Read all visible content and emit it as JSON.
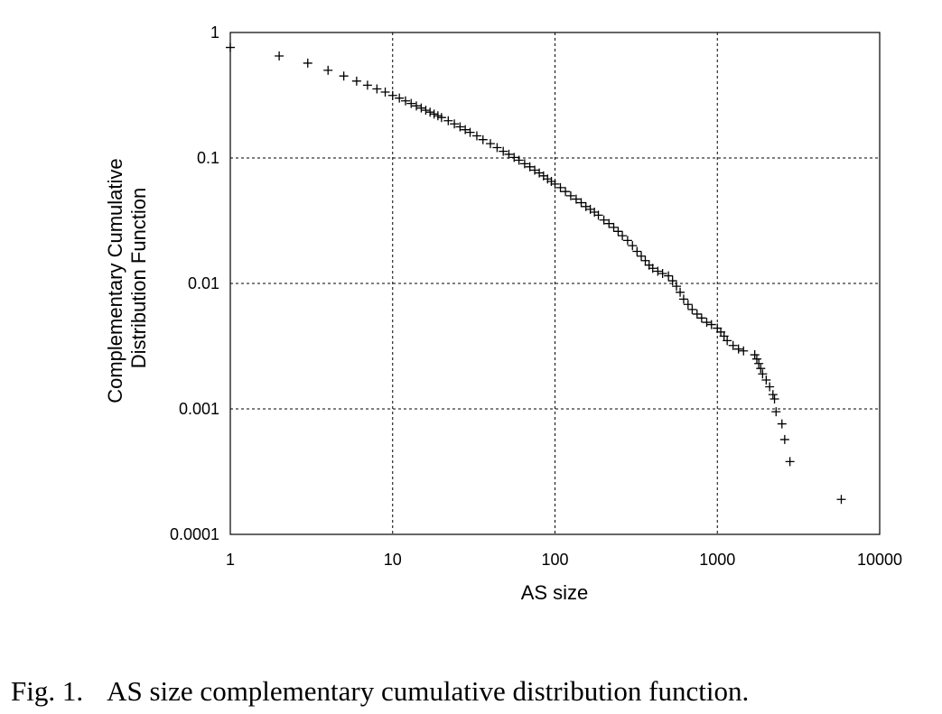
{
  "caption": {
    "label": "Fig. 1.",
    "text": "AS size complementary cumulative distribution function."
  },
  "chart_data": {
    "type": "scatter",
    "xlabel": "AS size",
    "ylabel": [
      "Complementary Cumulative",
      "Distribution Function"
    ],
    "x_scale": "log",
    "y_scale": "log",
    "xlim": [
      1,
      10000
    ],
    "ylim": [
      0.0001,
      1
    ],
    "x_ticks": [
      "1",
      "10",
      "100",
      "1000",
      "10000"
    ],
    "y_ticks": [
      "1",
      "0.1",
      "0.01",
      "0.001",
      "0.0001"
    ],
    "grid": "dashed",
    "marker": "+",
    "series": [
      {
        "points": [
          [
            1,
            0.76
          ],
          [
            2,
            0.65
          ],
          [
            3,
            0.57
          ],
          [
            4,
            0.5
          ],
          [
            5,
            0.45
          ],
          [
            6,
            0.41
          ],
          [
            7,
            0.38
          ],
          [
            8,
            0.355
          ],
          [
            9,
            0.335
          ],
          [
            10,
            0.315
          ],
          [
            11,
            0.3
          ],
          [
            12,
            0.285
          ],
          [
            13,
            0.272
          ],
          [
            14,
            0.26
          ],
          [
            15,
            0.25
          ],
          [
            16,
            0.24
          ],
          [
            17,
            0.232
          ],
          [
            18,
            0.224
          ],
          [
            19,
            0.217
          ],
          [
            20,
            0.21
          ],
          [
            22,
            0.198
          ],
          [
            24,
            0.187
          ],
          [
            26,
            0.177
          ],
          [
            28,
            0.168
          ],
          [
            30,
            0.16
          ],
          [
            33,
            0.15
          ],
          [
            36,
            0.14
          ],
          [
            40,
            0.13
          ],
          [
            44,
            0.121
          ],
          [
            48,
            0.113
          ],
          [
            52,
            0.107
          ],
          [
            56,
            0.101
          ],
          [
            60,
            0.096
          ],
          [
            65,
            0.09
          ],
          [
            70,
            0.085
          ],
          [
            75,
            0.08
          ],
          [
            80,
            0.076
          ],
          [
            85,
            0.072
          ],
          [
            90,
            0.068
          ],
          [
            95,
            0.065
          ],
          [
            100,
            0.062
          ],
          [
            108,
            0.058
          ],
          [
            116,
            0.054
          ],
          [
            125,
            0.05
          ],
          [
            135,
            0.047
          ],
          [
            145,
            0.044
          ],
          [
            155,
            0.041
          ],
          [
            165,
            0.039
          ],
          [
            175,
            0.037
          ],
          [
            185,
            0.035
          ],
          [
            200,
            0.032
          ],
          [
            215,
            0.03
          ],
          [
            230,
            0.028
          ],
          [
            245,
            0.026
          ],
          [
            260,
            0.024
          ],
          [
            280,
            0.022
          ],
          [
            300,
            0.02
          ],
          [
            320,
            0.018
          ],
          [
            340,
            0.0165
          ],
          [
            360,
            0.0152
          ],
          [
            380,
            0.014
          ],
          [
            400,
            0.0132
          ],
          [
            430,
            0.0125
          ],
          [
            460,
            0.012
          ],
          [
            500,
            0.0115
          ],
          [
            530,
            0.0105
          ],
          [
            560,
            0.0095
          ],
          [
            590,
            0.0085
          ],
          [
            620,
            0.0075
          ],
          [
            660,
            0.0068
          ],
          [
            700,
            0.0062
          ],
          [
            750,
            0.0057
          ],
          [
            800,
            0.0053
          ],
          [
            860,
            0.0049
          ],
          [
            920,
            0.0047
          ],
          [
            1000,
            0.0044
          ],
          [
            1050,
            0.0041
          ],
          [
            1100,
            0.0038
          ],
          [
            1150,
            0.0035
          ],
          [
            1250,
            0.0032
          ],
          [
            1350,
            0.003
          ],
          [
            1450,
            0.0029
          ],
          [
            1700,
            0.0027
          ],
          [
            1750,
            0.0025
          ],
          [
            1800,
            0.0023
          ],
          [
            1850,
            0.0021
          ],
          [
            1900,
            0.0019
          ],
          [
            2000,
            0.0017
          ],
          [
            2100,
            0.0015
          ],
          [
            2200,
            0.0013
          ],
          [
            2250,
            0.0012
          ],
          [
            2300,
            0.00095
          ],
          [
            2500,
            0.00076
          ],
          [
            2600,
            0.00057
          ],
          [
            2800,
            0.00038
          ],
          [
            5800,
            0.00019
          ]
        ]
      }
    ]
  }
}
